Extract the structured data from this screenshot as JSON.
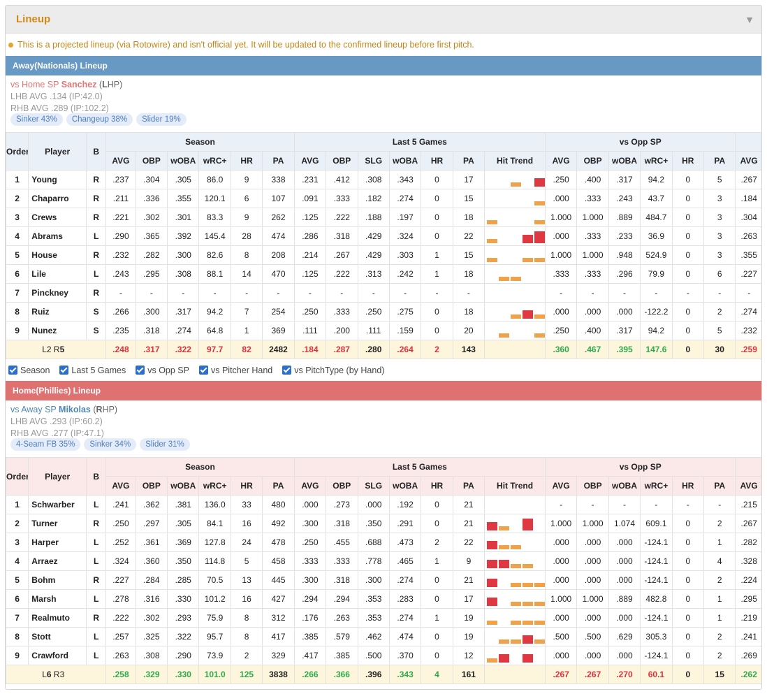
{
  "panel": {
    "title": "Lineup",
    "collapse_icon": "triangle-down-icon"
  },
  "notice": "This is a projected lineup (via Rotowire) and isn't official yet. It will be updated to the confirmed lineup before first pitch.",
  "headers": {
    "order": "Order",
    "player": "Player",
    "bats": "B",
    "season": "Season",
    "last5": "Last 5 Games",
    "vsopp": "vs Opp SP",
    "season_cols": [
      "AVG",
      "OBP",
      "wOBA",
      "wRC+",
      "HR",
      "PA"
    ],
    "last5_cols": [
      "AVG",
      "OBP",
      "SLG",
      "wOBA",
      "HR",
      "PA",
      "Hit Trend"
    ],
    "vsopp_cols": [
      "AVG",
      "OBP",
      "wOBA",
      "wRC+",
      "HR",
      "PA"
    ],
    "extra_col": "AVG"
  },
  "filters": [
    "Season",
    "Last 5 Games",
    "vs Opp SP",
    "vs Pitcher Hand",
    "vs PitchType (by Hand)"
  ],
  "colors": {
    "away": "#6799c4",
    "home": "#e07171",
    "accent": "#d08a1a",
    "hit_red": "#e03842",
    "hit_orange": "#f0a24b"
  },
  "away": {
    "title": "Away(Nationals) Lineup",
    "sp": {
      "prefix": "vs Home SP",
      "name": "Sanchez",
      "hand_open": " (",
      "hand_bold": "L",
      "hand_rest": "HP)",
      "lhb": "LHB AVG .134 (IP:42.0)",
      "rhb": "RHB AVG .289 (IP:102.2)"
    },
    "pitches": [
      "Sinker 43%",
      "Changeup 38%",
      "Slider 19%"
    ],
    "rows": [
      {
        "order": "1",
        "player": "Young",
        "bats": "R",
        "season": [
          ".237",
          ".304",
          ".305",
          "86.0",
          "9",
          "338"
        ],
        "last5": [
          ".231",
          ".412",
          ".308",
          ".343",
          "0",
          "17"
        ],
        "trend": [
          [],
          [],
          [
            "o",
            0.35
          ],
          [],
          [
            "r",
            0.7
          ]
        ],
        "vsopp": [
          ".250",
          ".400",
          ".317",
          "94.2",
          "0",
          "5"
        ],
        "extra": ".267"
      },
      {
        "order": "2",
        "player": "Chaparro",
        "bats": "R",
        "season": [
          ".211",
          ".336",
          ".355",
          "120.1",
          "6",
          "107"
        ],
        "last5": [
          ".091",
          ".333",
          ".182",
          ".274",
          "0",
          "15"
        ],
        "trend": [
          [],
          [],
          [],
          [],
          [
            "o",
            0.35
          ]
        ],
        "vsopp": [
          ".000",
          ".333",
          ".243",
          "43.7",
          "0",
          "3"
        ],
        "extra": ".184"
      },
      {
        "order": "3",
        "player": "Crews",
        "bats": "R",
        "season": [
          ".221",
          ".302",
          ".301",
          "83.3",
          "9",
          "262"
        ],
        "last5": [
          ".125",
          ".222",
          ".188",
          ".197",
          "0",
          "18"
        ],
        "trend": [
          [
            "o",
            0.35
          ],
          [],
          [],
          [],
          [
            "o",
            0.35
          ]
        ],
        "vsopp": [
          "1.000",
          "1.000",
          ".889",
          "484.7",
          "0",
          "3"
        ],
        "extra": ".304"
      },
      {
        "order": "4",
        "player": "Abrams",
        "bats": "L",
        "season": [
          ".290",
          ".365",
          ".392",
          "145.4",
          "28",
          "474"
        ],
        "last5": [
          ".286",
          ".318",
          ".429",
          ".324",
          "0",
          "22"
        ],
        "trend": [
          [
            "o",
            0.35
          ],
          [],
          [],
          [
            "r",
            0.7
          ],
          [
            "r",
            1.0
          ]
        ],
        "vsopp": [
          ".000",
          ".333",
          ".233",
          "36.9",
          "0",
          "3"
        ],
        "extra": ".263"
      },
      {
        "order": "5",
        "player": "House",
        "bats": "R",
        "season": [
          ".232",
          ".282",
          ".300",
          "82.6",
          "8",
          "208"
        ],
        "last5": [
          ".214",
          ".267",
          ".429",
          ".303",
          "1",
          "15"
        ],
        "trend": [
          [
            "o",
            0.35
          ],
          [],
          [],
          [
            "o",
            0.35
          ],
          [
            "o",
            0.35
          ]
        ],
        "vsopp": [
          "1.000",
          "1.000",
          ".948",
          "524.9",
          "0",
          "3"
        ],
        "extra": ".355"
      },
      {
        "order": "6",
        "player": "Lile",
        "bats": "L",
        "season": [
          ".243",
          ".295",
          ".308",
          "88.1",
          "14",
          "470"
        ],
        "last5": [
          ".125",
          ".222",
          ".313",
          ".242",
          "1",
          "18"
        ],
        "trend": [
          [],
          [
            "o",
            0.35
          ],
          [
            "o",
            0.35
          ],
          [],
          []
        ],
        "vsopp": [
          ".333",
          ".333",
          ".296",
          "79.9",
          "0",
          "6"
        ],
        "extra": ".227"
      },
      {
        "order": "7",
        "player": "Pinckney",
        "bats": "R",
        "season": [
          "-",
          "-",
          "-",
          "-",
          "-",
          "-"
        ],
        "last5": [
          "-",
          "-",
          "-",
          "-",
          "-",
          "-"
        ],
        "trend": [
          [],
          [],
          [],
          [],
          []
        ],
        "vsopp": [
          "-",
          "-",
          "-",
          "-",
          "-",
          "-"
        ],
        "extra": "-"
      },
      {
        "order": "8",
        "player": "Ruiz",
        "bats": "S",
        "season": [
          ".266",
          ".300",
          ".317",
          "94.2",
          "7",
          "254"
        ],
        "last5": [
          ".250",
          ".333",
          ".250",
          ".275",
          "0",
          "18"
        ],
        "trend": [
          [],
          [],
          [
            "o",
            0.35
          ],
          [
            "r",
            0.7
          ],
          [
            "o",
            0.35
          ]
        ],
        "vsopp": [
          ".000",
          ".000",
          ".000",
          "-122.2",
          "0",
          "2"
        ],
        "extra": ".274"
      },
      {
        "order": "9",
        "player": "Nunez",
        "bats": "S",
        "season": [
          ".235",
          ".318",
          ".274",
          "64.8",
          "1",
          "369"
        ],
        "last5": [
          ".111",
          ".200",
          ".111",
          ".159",
          "0",
          "20"
        ],
        "trend": [
          [],
          [
            "o",
            0.35
          ],
          [],
          [],
          [
            "o",
            0.35
          ]
        ],
        "vsopp": [
          ".250",
          ".400",
          ".317",
          "94.2",
          "0",
          "5"
        ],
        "extra": ".232"
      }
    ],
    "total": {
      "label_pre": "L2 R",
      "label_bold": "5",
      "season": [
        ".248",
        ".317",
        ".322",
        "97.7",
        "82",
        "2482"
      ],
      "season_cls": [
        "red",
        "red",
        "red",
        "red",
        "red",
        "blk"
      ],
      "last5": [
        ".184",
        ".287",
        ".280",
        ".264",
        "2",
        "143"
      ],
      "last5_cls": [
        "red",
        "red",
        "norm",
        "red",
        "red",
        "blk"
      ],
      "vsopp": [
        ".360",
        ".467",
        ".395",
        "147.6",
        "0",
        "30"
      ],
      "vsopp_cls": [
        "green",
        "green",
        "green",
        "green",
        "norm",
        "blk"
      ],
      "extra": ".259",
      "extra_cls": "red"
    }
  },
  "home": {
    "title": "Home(Phillies) Lineup",
    "sp": {
      "prefix": "vs Away SP",
      "name": "Mikolas",
      "hand_open": " (",
      "hand_bold": "R",
      "hand_rest": "HP)",
      "lhb": "LHB AVG .293 (IP:60.2)",
      "rhb": "RHB AVG .277 (IP:47.1)"
    },
    "pitches": [
      "4-Seam FB 35%",
      "Sinker 34%",
      "Slider 31%"
    ],
    "rows": [
      {
        "order": "1",
        "player": "Schwarber",
        "bats": "L",
        "season": [
          ".241",
          ".362",
          ".381",
          "136.0",
          "33",
          "480"
        ],
        "last5": [
          ".000",
          ".273",
          ".000",
          ".192",
          "0",
          "21"
        ],
        "trend": [
          [],
          [],
          [],
          [],
          []
        ],
        "vsopp": [
          "-",
          "-",
          "-",
          "-",
          "-",
          "-"
        ],
        "extra": ".215"
      },
      {
        "order": "2",
        "player": "Turner",
        "bats": "R",
        "season": [
          ".250",
          ".297",
          ".305",
          "84.1",
          "16",
          "492"
        ],
        "last5": [
          ".300",
          ".318",
          ".350",
          ".291",
          "0",
          "21"
        ],
        "trend": [
          [
            "r",
            0.7
          ],
          [
            "o",
            0.35
          ],
          [],
          [
            "r",
            1.0
          ],
          []
        ],
        "vsopp": [
          "1.000",
          "1.000",
          "1.074",
          "609.1",
          "0",
          "2"
        ],
        "extra": ".267"
      },
      {
        "order": "3",
        "player": "Harper",
        "bats": "L",
        "season": [
          ".252",
          ".361",
          ".369",
          "127.8",
          "24",
          "478"
        ],
        "last5": [
          ".250",
          ".455",
          ".688",
          ".473",
          "2",
          "22"
        ],
        "trend": [
          [
            "r",
            0.7
          ],
          [
            "o",
            0.35
          ],
          [
            "o",
            0.35
          ],
          [],
          []
        ],
        "vsopp": [
          ".000",
          ".000",
          ".000",
          "-124.1",
          "0",
          "1"
        ],
        "extra": ".282"
      },
      {
        "order": "4",
        "player": "Arraez",
        "bats": "L",
        "season": [
          ".324",
          ".360",
          ".350",
          "114.8",
          "5",
          "458"
        ],
        "last5": [
          ".333",
          ".333",
          ".778",
          ".465",
          "1",
          "9"
        ],
        "trend": [
          [
            "r",
            0.7
          ],
          [
            "r",
            0.7
          ],
          [
            "o",
            0.35
          ],
          [
            "o",
            0.35
          ],
          []
        ],
        "vsopp": [
          ".000",
          ".000",
          ".000",
          "-124.1",
          "0",
          "4"
        ],
        "extra": ".328"
      },
      {
        "order": "5",
        "player": "Bohm",
        "bats": "R",
        "season": [
          ".227",
          ".284",
          ".285",
          "70.5",
          "13",
          "445"
        ],
        "last5": [
          ".300",
          ".318",
          ".300",
          ".274",
          "0",
          "21"
        ],
        "trend": [
          [
            "r",
            0.7
          ],
          [],
          [
            "o",
            0.35
          ],
          [
            "o",
            0.35
          ],
          [
            "o",
            0.35
          ]
        ],
        "vsopp": [
          ".000",
          ".000",
          ".000",
          "-124.1",
          "0",
          "2"
        ],
        "extra": ".224"
      },
      {
        "order": "6",
        "player": "Marsh",
        "bats": "L",
        "season": [
          ".278",
          ".316",
          ".330",
          "101.2",
          "16",
          "427"
        ],
        "last5": [
          ".294",
          ".294",
          ".353",
          ".283",
          "0",
          "17"
        ],
        "trend": [
          [
            "r",
            0.7
          ],
          [],
          [
            "o",
            0.35
          ],
          [
            "o",
            0.35
          ],
          [
            "o",
            0.35
          ]
        ],
        "vsopp": [
          "1.000",
          "1.000",
          ".889",
          "482.8",
          "0",
          "1"
        ],
        "extra": ".295"
      },
      {
        "order": "7",
        "player": "Realmuto",
        "bats": "R",
        "season": [
          ".222",
          ".302",
          ".293",
          "75.9",
          "8",
          "312"
        ],
        "last5": [
          ".176",
          ".263",
          ".353",
          ".274",
          "1",
          "19"
        ],
        "trend": [
          [
            "o",
            0.35
          ],
          [],
          [
            "o",
            0.35
          ],
          [
            "o",
            0.35
          ],
          [
            "o",
            0.35
          ]
        ],
        "vsopp": [
          ".000",
          ".000",
          ".000",
          "-124.1",
          "0",
          "1"
        ],
        "extra": ".219"
      },
      {
        "order": "8",
        "player": "Stott",
        "bats": "L",
        "season": [
          ".257",
          ".325",
          ".322",
          "95.7",
          "8",
          "417"
        ],
        "last5": [
          ".385",
          ".579",
          ".462",
          ".474",
          "0",
          "19"
        ],
        "trend": [
          [],
          [
            "o",
            0.35
          ],
          [
            "o",
            0.35
          ],
          [
            "r",
            0.7
          ],
          [
            "o",
            0.35
          ]
        ],
        "vsopp": [
          ".500",
          ".500",
          ".629",
          "305.3",
          "0",
          "2"
        ],
        "extra": ".241"
      },
      {
        "order": "9",
        "player": "Crawford",
        "bats": "L",
        "season": [
          ".263",
          ".308",
          ".290",
          "73.9",
          "2",
          "329"
        ],
        "last5": [
          ".417",
          ".385",
          ".500",
          ".370",
          "0",
          "12"
        ],
        "trend": [
          [
            "o",
            0.35
          ],
          [
            "r",
            0.7
          ],
          [],
          [
            "r",
            0.7
          ],
          []
        ],
        "vsopp": [
          ".000",
          ".000",
          ".000",
          "-124.1",
          "0",
          "2"
        ],
        "extra": ".269"
      }
    ],
    "total": {
      "label_pre": "L",
      "label_bold": "6",
      "label_post": " R3",
      "season": [
        ".258",
        ".329",
        ".330",
        "101.0",
        "125",
        "3838"
      ],
      "season_cls": [
        "green",
        "green",
        "green",
        "green",
        "green",
        "blk"
      ],
      "last5": [
        ".266",
        ".366",
        ".396",
        ".343",
        "4",
        "161"
      ],
      "last5_cls": [
        "green",
        "green",
        "norm",
        "green",
        "green",
        "blk"
      ],
      "vsopp": [
        ".267",
        ".267",
        ".270",
        "60.1",
        "0",
        "15"
      ],
      "vsopp_cls": [
        "red",
        "red",
        "red",
        "red",
        "norm",
        "blk"
      ],
      "extra": ".262",
      "extra_cls": "green"
    }
  }
}
